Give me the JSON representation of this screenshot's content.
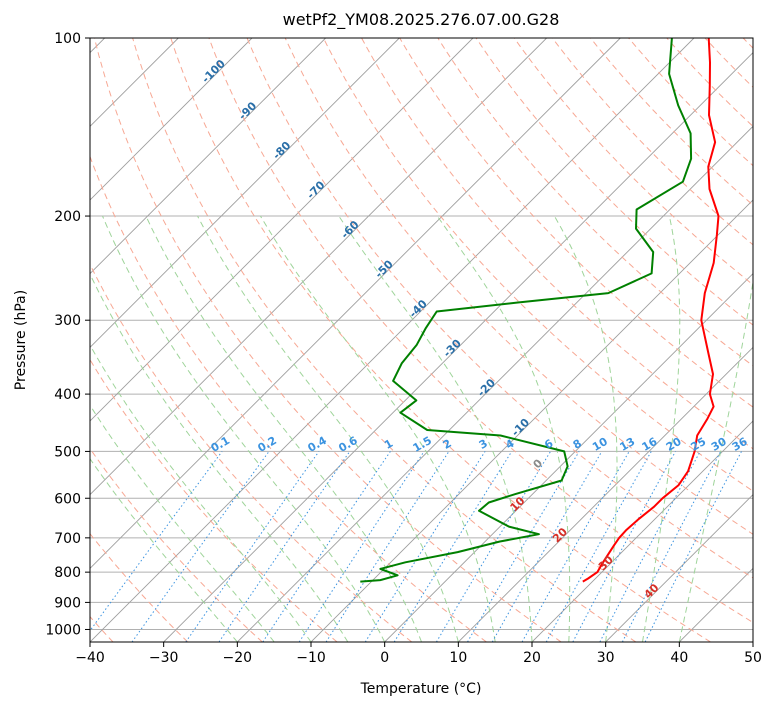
{
  "chart_data": {
    "type": "line",
    "title": "wetPf2_YM08.2025.276.07.00.G28",
    "xlabel": "Temperature (°C)",
    "ylabel": "Pressure (hPa)",
    "xlim": [
      -40,
      50
    ],
    "ylim": [
      1050,
      100
    ],
    "y_scale": "log",
    "grid": true,
    "x_ticks": [
      -40,
      -30,
      -20,
      -10,
      0,
      10,
      20,
      30,
      40,
      50
    ],
    "y_ticks": [
      100,
      200,
      300,
      400,
      500,
      600,
      700,
      800,
      900,
      1000
    ],
    "series": [
      {
        "role": "temperature",
        "color": "#ff0000",
        "points": [
          [
            830,
            18.7
          ],
          [
            820,
            19.0
          ],
          [
            800,
            19.4
          ],
          [
            780,
            19.0
          ],
          [
            750,
            18.5
          ],
          [
            720,
            18.0
          ],
          [
            700,
            17.7
          ],
          [
            680,
            17.6
          ],
          [
            650,
            17.8
          ],
          [
            620,
            18.2
          ],
          [
            600,
            18.2
          ],
          [
            570,
            18.6
          ],
          [
            540,
            18.0
          ],
          [
            500,
            16.2
          ],
          [
            470,
            14.4
          ],
          [
            440,
            13.5
          ],
          [
            420,
            12.7
          ],
          [
            400,
            10.5
          ],
          [
            370,
            8.2
          ],
          [
            340,
            4.6
          ],
          [
            300,
            -0.7
          ],
          [
            270,
            -3.9
          ],
          [
            240,
            -6.8
          ],
          [
            215,
            -10.2
          ],
          [
            200,
            -12.5
          ],
          [
            180,
            -17.4
          ],
          [
            165,
            -20.6
          ],
          [
            150,
            -23.0
          ],
          [
            135,
            -27.5
          ],
          [
            120,
            -31.5
          ],
          [
            110,
            -34.5
          ],
          [
            100,
            -38.0
          ]
        ]
      },
      {
        "role": "dewpoint",
        "color": "#008000",
        "points": [
          [
            830,
            -11.5
          ],
          [
            825,
            -9.0
          ],
          [
            810,
            -7.3
          ],
          [
            790,
            -10.5
          ],
          [
            770,
            -8.0
          ],
          [
            740,
            -2.3
          ],
          [
            710,
            2.0
          ],
          [
            690,
            6.3
          ],
          [
            670,
            1.2
          ],
          [
            630,
            -5.0
          ],
          [
            610,
            -4.8
          ],
          [
            590,
            -2.3
          ],
          [
            560,
            2.1
          ],
          [
            530,
            1.0
          ],
          [
            500,
            -1.5
          ],
          [
            470,
            -12.3
          ],
          [
            460,
            -23.0
          ],
          [
            430,
            -29.0
          ],
          [
            410,
            -28.5
          ],
          [
            380,
            -34.3
          ],
          [
            355,
            -35.5
          ],
          [
            330,
            -36.0
          ],
          [
            310,
            -37.0
          ],
          [
            290,
            -37.8
          ],
          [
            280,
            -28.0
          ],
          [
            270,
            -17.0
          ],
          [
            250,
            -13.8
          ],
          [
            230,
            -16.5
          ],
          [
            210,
            -22.0
          ],
          [
            195,
            -24.5
          ],
          [
            175,
            -22.0
          ],
          [
            160,
            -24.0
          ],
          [
            145,
            -27.5
          ],
          [
            130,
            -33.0
          ],
          [
            115,
            -38.5
          ],
          [
            100,
            -43.0
          ]
        ]
      }
    ],
    "dry_adiabat_labels": [
      "-100",
      "-90",
      "-80",
      "-70",
      "-60",
      "-50",
      "-40",
      "-30",
      "-20",
      "-10",
      "0",
      "10",
      "20",
      "30",
      "40"
    ],
    "mixing_ratio_labels": [
      "0.1",
      "0.2",
      "0.4",
      "0.6",
      "1",
      "1.5",
      "2",
      "3",
      "4",
      "6",
      "8",
      "10",
      "13",
      "16",
      "20",
      "25",
      "30",
      "36"
    ],
    "colors": {
      "temperature": "#ff0000",
      "dewpoint": "#008000",
      "isotherm": "#9e9e9e",
      "isobar": "#b0b0b0",
      "dry_adiabat": "#f7a894",
      "moist_adiabat": "#9fd49a",
      "mixing_ratio": "#3b93e0",
      "cold_label": "#2a6fa8",
      "warm_label": "#d63028"
    }
  }
}
